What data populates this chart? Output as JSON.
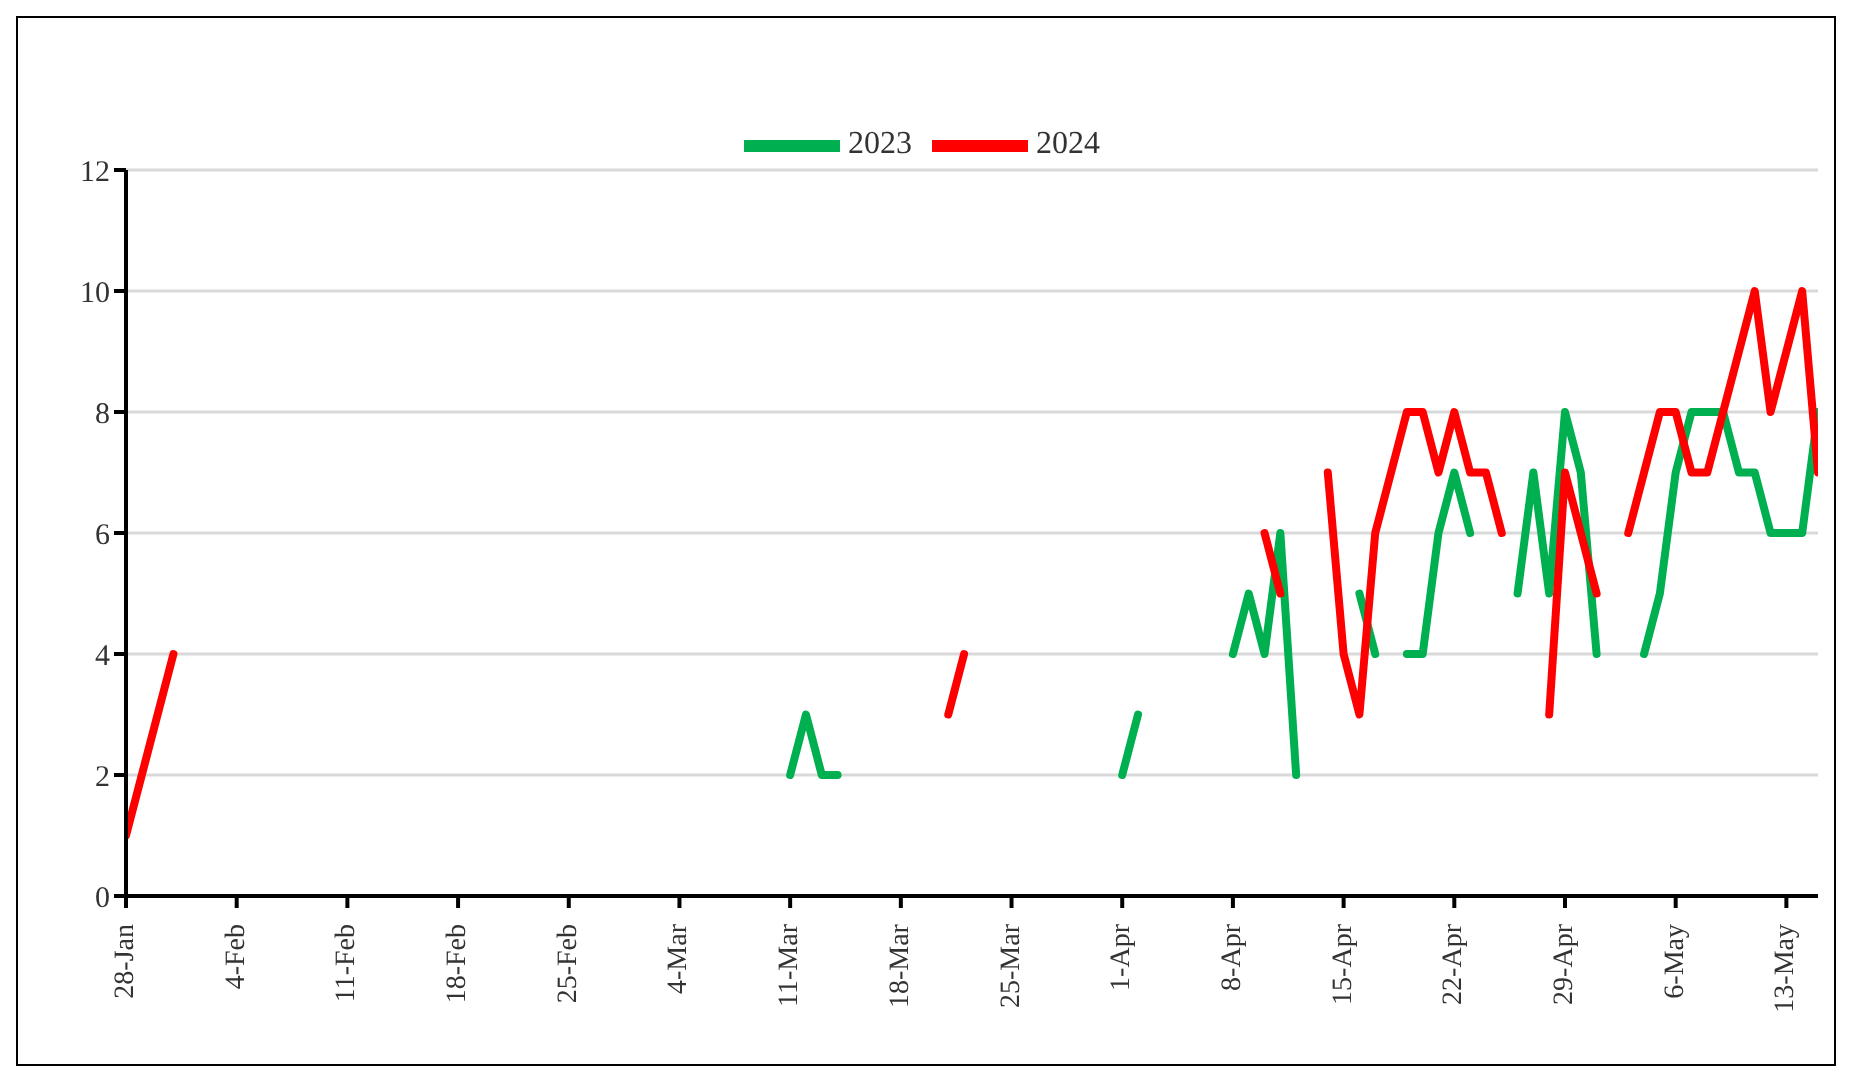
{
  "chart_data": {
    "type": "line",
    "xlim": [
      "--01-28",
      "--05-15"
    ],
    "xticks": [
      {
        "value": "--01-28",
        "label": "28-Jan"
      },
      {
        "value": "--02-04",
        "label": "4-Feb"
      },
      {
        "value": "--02-11",
        "label": "11-Feb"
      },
      {
        "value": "--02-18",
        "label": "18-Feb"
      },
      {
        "value": "--02-25",
        "label": "25-Feb"
      },
      {
        "value": "--03-04",
        "label": "4-Mar"
      },
      {
        "value": "--03-11",
        "label": "11-Mar"
      },
      {
        "value": "--03-18",
        "label": "18-Mar"
      },
      {
        "value": "--03-25",
        "label": "25-Mar"
      },
      {
        "value": "--04-01",
        "label": "1-Apr"
      },
      {
        "value": "--04-08",
        "label": "8-Apr"
      },
      {
        "value": "--04-15",
        "label": "15-Apr"
      },
      {
        "value": "--04-22",
        "label": "22-Apr"
      },
      {
        "value": "--04-29",
        "label": "29-Apr"
      },
      {
        "value": "--05-06",
        "label": "6-May"
      },
      {
        "value": "--05-13",
        "label": "13-May"
      }
    ],
    "ylim": [
      0,
      12
    ],
    "yticks": [
      0,
      2,
      4,
      6,
      8,
      10,
      12
    ],
    "grid": "y",
    "legend": "top",
    "marker": "none",
    "line_style": "solid",
    "series": [
      {
        "name": "2023",
        "color": "#00b050",
        "x": [
          "--03-11",
          "--03-12",
          "--03-13",
          "--03-14",
          "--03-20",
          "--04-01",
          "--04-02",
          "--04-05",
          "--04-08",
          "--04-09",
          "--04-10",
          "--04-11",
          "--04-12",
          "--04-14",
          "--04-16",
          "--04-17",
          "--04-18",
          "--04-19",
          "--04-20",
          "--04-21",
          "--04-22",
          "--04-23",
          "--04-25",
          "--04-26",
          "--04-27",
          "--04-28",
          "--04-29",
          "--04-30",
          "--05-01",
          "--05-03",
          "--05-04",
          "--05-05",
          "--05-06",
          "--05-07",
          "--05-08",
          "--05-09",
          "--05-10",
          "--05-11",
          "--05-12",
          "--05-13",
          "--05-14",
          "--05-15"
        ],
        "values": [
          2,
          3,
          2,
          2,
          null,
          2,
          3,
          null,
          4,
          5,
          4,
          6,
          2,
          null,
          5,
          4,
          null,
          4,
          4,
          6,
          7,
          6,
          null,
          5,
          7,
          5,
          8,
          7,
          4,
          null,
          4,
          5,
          7,
          8,
          8,
          8,
          7,
          7,
          6,
          6,
          6,
          8
        ]
      },
      {
        "name": "2024",
        "color": "#ff0000",
        "x": [
          "--01-28",
          "--01-31",
          "--02-10",
          "--03-21",
          "--03-22",
          "--03-30",
          "--04-10",
          "--04-11",
          "--04-12",
          "--04-14",
          "--04-15",
          "--04-16",
          "--04-17",
          "--04-18",
          "--04-19",
          "--04-20",
          "--04-21",
          "--04-22",
          "--04-23",
          "--04-24",
          "--04-25",
          "--04-26",
          "--04-28",
          "--04-29",
          "--04-30",
          "--05-01",
          "--05-02",
          "--05-03",
          "--05-04",
          "--05-05",
          "--05-06",
          "--05-07",
          "--05-08",
          "--05-09",
          "--05-10",
          "--05-11",
          "--05-12",
          "--05-13",
          "--05-14",
          "--05-15"
        ],
        "values": [
          1,
          4,
          null,
          3,
          4,
          null,
          6,
          5,
          null,
          7,
          4,
          3,
          6,
          7,
          8,
          8,
          7,
          8,
          7,
          7,
          6,
          null,
          3,
          7,
          6,
          5,
          null,
          6,
          7,
          8,
          8,
          7,
          7,
          8,
          9,
          10,
          8,
          9,
          10,
          7
        ]
      }
    ]
  }
}
